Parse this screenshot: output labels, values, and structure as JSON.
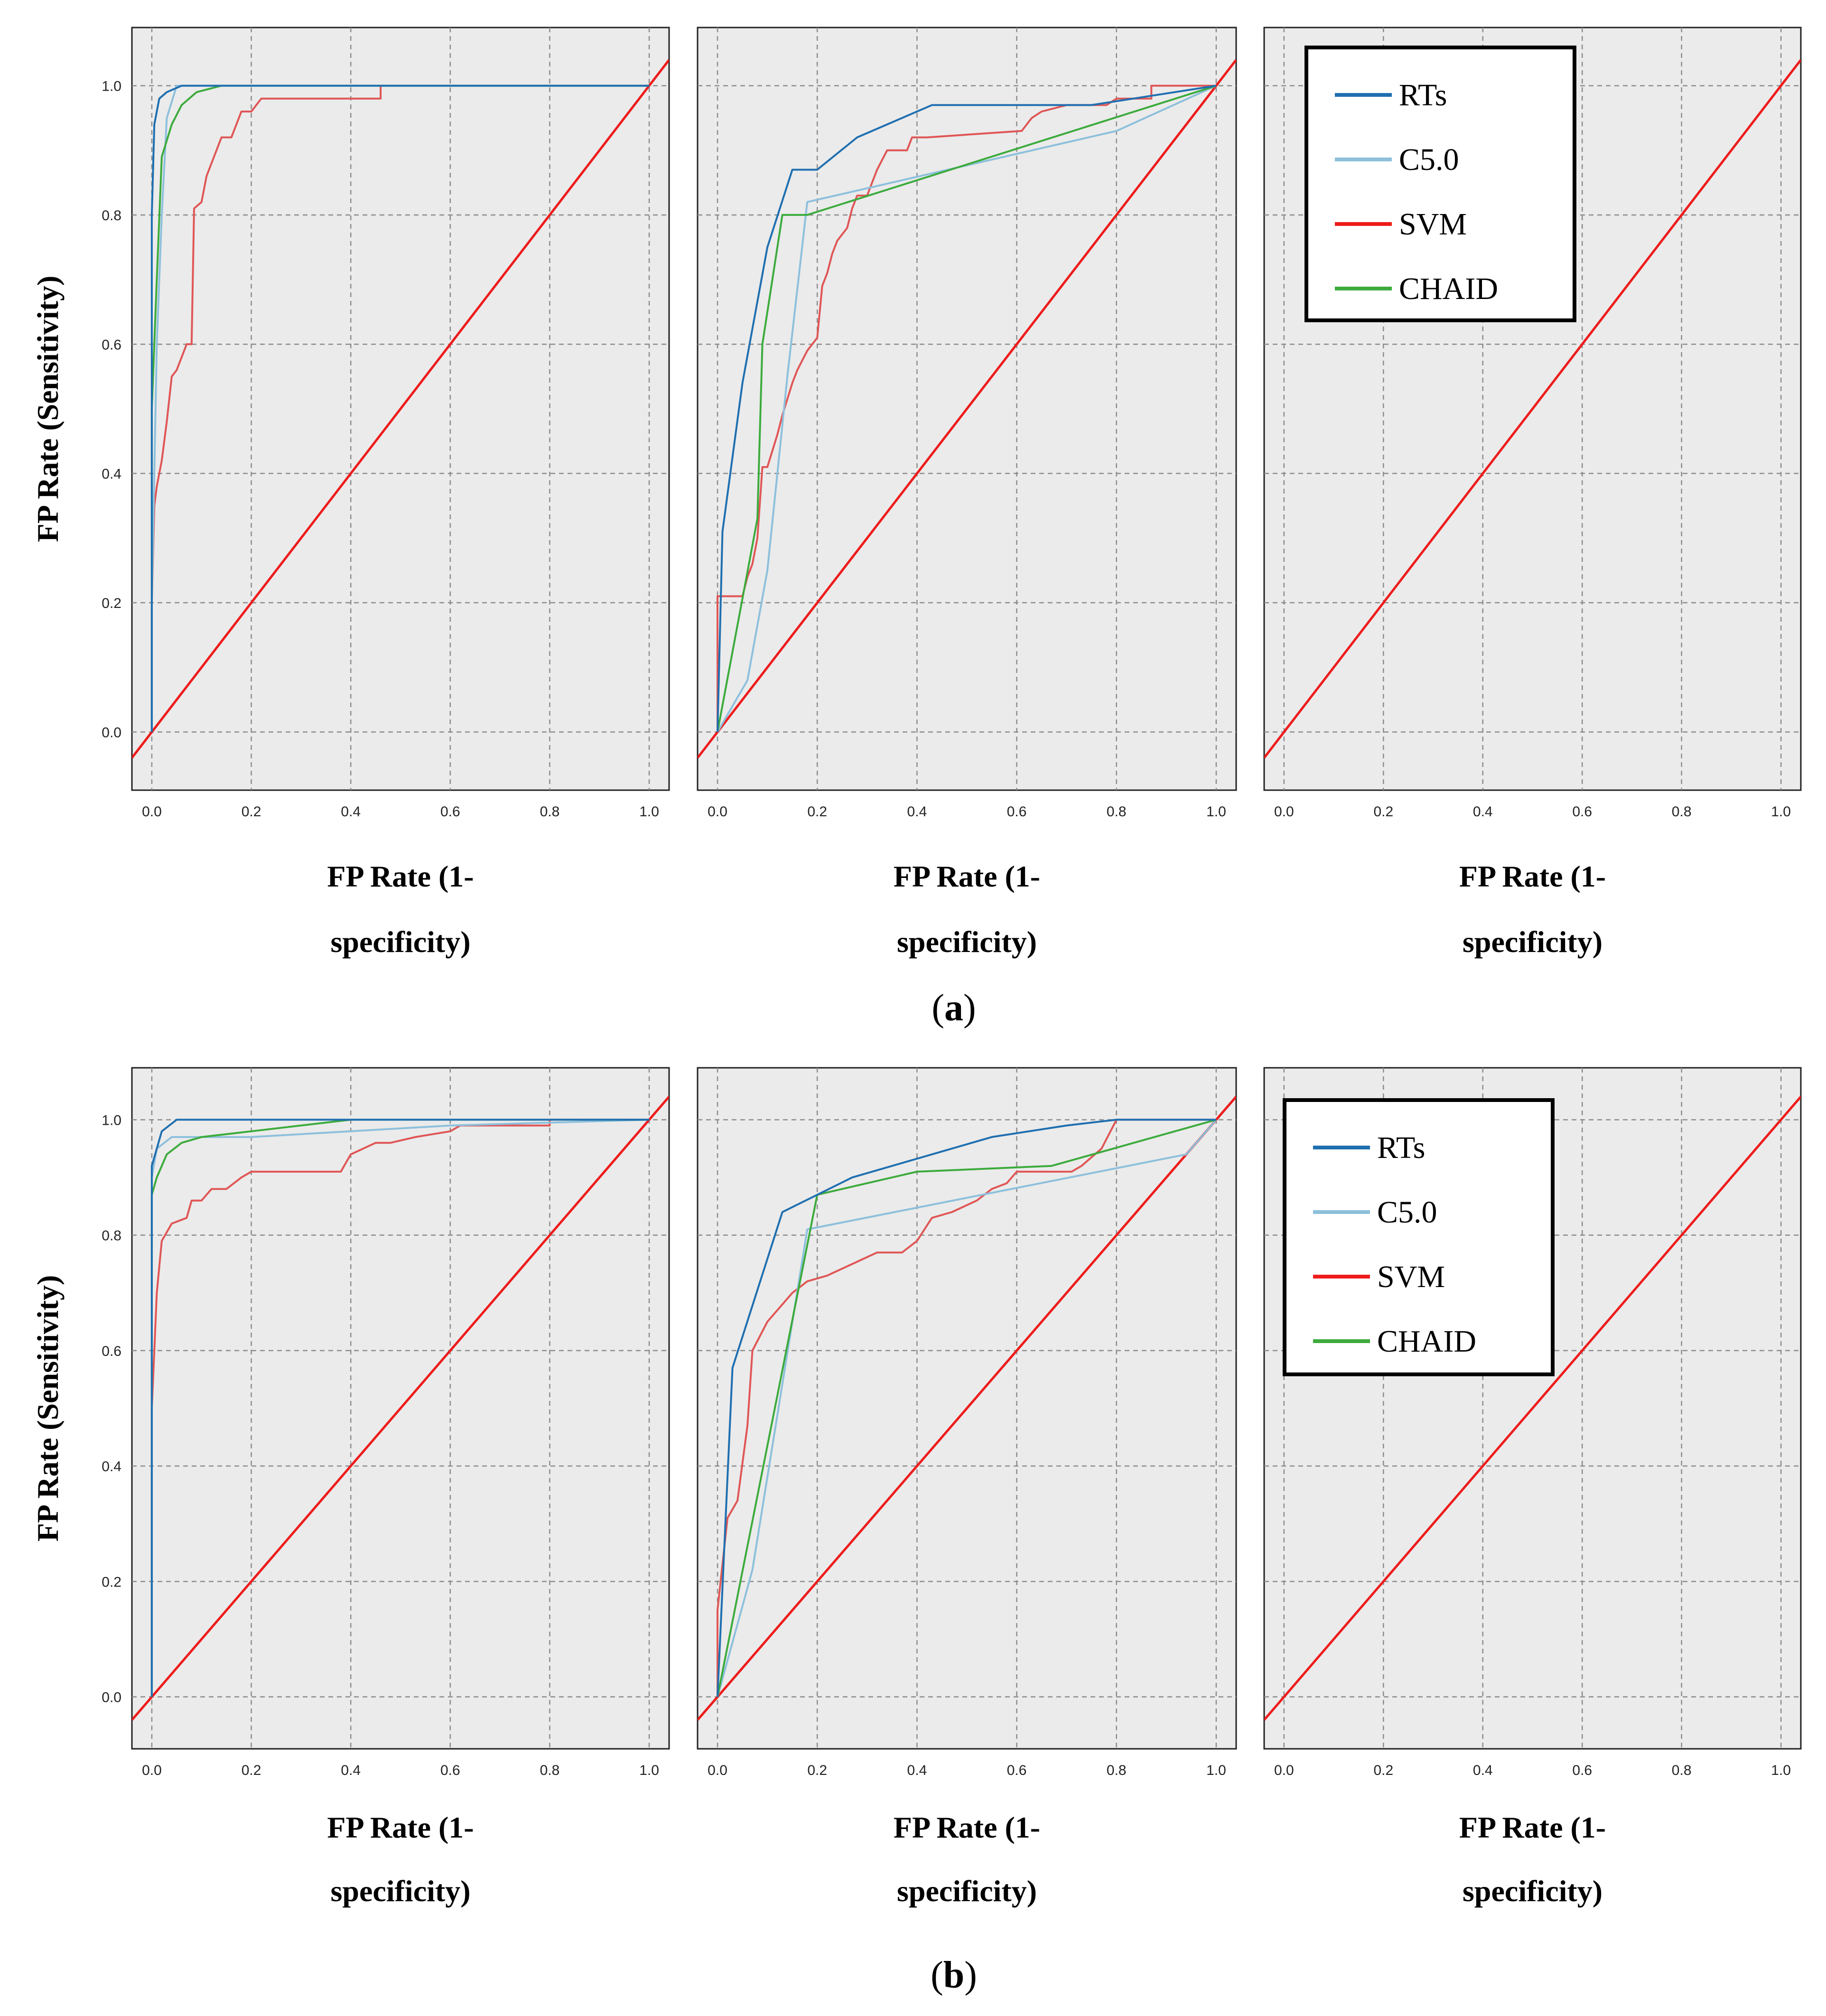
{
  "colors": {
    "RTs": "#1f6fb0",
    "C5.0": "#8dc0dc",
    "SVM": "#e05656",
    "CHAID": "#3cab3c",
    "reference": "#ee1c1c",
    "plot_bg": "#ebebeb",
    "grid": "#8c8c8c"
  },
  "legend": [
    {
      "name": "RTs",
      "color": "#1f6fb0"
    },
    {
      "name": "C5.0",
      "color": "#8dc0dc"
    },
    {
      "name": "SVM",
      "color": "#ee1c1c"
    },
    {
      "name": "CHAID",
      "color": "#3cab3c"
    }
  ],
  "panel_labels": [
    "a",
    "b"
  ],
  "chart_data": [
    {
      "group": "a",
      "panel": 1,
      "type": "line",
      "xlabel_line1": "FP Rate (1-",
      "xlabel_line2": "specificity)",
      "ylabel": "FP Rate (Sensitivity)",
      "xlim": [
        -0.04,
        1.04
      ],
      "ylim": [
        -0.09,
        1.09
      ],
      "xticks": [
        "0.0",
        "0.2",
        "0.4",
        "0.6",
        "0.8",
        "1.0"
      ],
      "yticks": [
        "0.0",
        "0.2",
        "0.4",
        "0.6",
        "0.8",
        "1.0"
      ],
      "grid": true,
      "show_legend": false,
      "series": [
        {
          "name": "SVM",
          "points": [
            [
              0,
              0
            ],
            [
              0,
              0.2
            ],
            [
              0.005,
              0.35
            ],
            [
              0.01,
              0.38
            ],
            [
              0.02,
              0.42
            ],
            [
              0.03,
              0.48
            ],
            [
              0.04,
              0.55
            ],
            [
              0.05,
              0.56
            ],
            [
              0.06,
              0.58
            ],
            [
              0.07,
              0.6
            ],
            [
              0.08,
              0.6
            ],
            [
              0.085,
              0.81
            ],
            [
              0.1,
              0.82
            ],
            [
              0.11,
              0.86
            ],
            [
              0.12,
              0.88
            ],
            [
              0.13,
              0.9
            ],
            [
              0.14,
              0.92
            ],
            [
              0.16,
              0.92
            ],
            [
              0.17,
              0.94
            ],
            [
              0.18,
              0.96
            ],
            [
              0.2,
              0.96
            ],
            [
              0.22,
              0.98
            ],
            [
              0.3,
              0.98
            ],
            [
              0.46,
              0.98
            ],
            [
              0.46,
              1.0
            ],
            [
              1.0,
              1.0
            ]
          ]
        },
        {
          "name": "C5.0",
          "points": [
            [
              0,
              0
            ],
            [
              0,
              0.2
            ],
            [
              0.01,
              0.6
            ],
            [
              0.02,
              0.8
            ],
            [
              0.03,
              0.95
            ],
            [
              0.05,
              1.0
            ],
            [
              1.0,
              1.0
            ]
          ]
        },
        {
          "name": "CHAID",
          "points": [
            [
              0,
              0
            ],
            [
              0,
              0.5
            ],
            [
              0.01,
              0.7
            ],
            [
              0.02,
              0.89
            ],
            [
              0.04,
              0.94
            ],
            [
              0.06,
              0.97
            ],
            [
              0.09,
              0.99
            ],
            [
              0.14,
              1.0
            ],
            [
              1.0,
              1.0
            ]
          ]
        },
        {
          "name": "RTs",
          "points": [
            [
              0,
              0
            ],
            [
              0,
              0.8
            ],
            [
              0.005,
              0.94
            ],
            [
              0.01,
              0.96
            ],
            [
              0.015,
              0.98
            ],
            [
              0.03,
              0.99
            ],
            [
              0.06,
              1.0
            ],
            [
              1.0,
              1.0
            ]
          ]
        }
      ],
      "reference_line": [
        [
          -0.04,
          -0.04
        ],
        [
          1.04,
          1.04
        ]
      ]
    },
    {
      "group": "a",
      "panel": 2,
      "type": "line",
      "xlabel_line1": "FP Rate (1-",
      "xlabel_line2": "specificity)",
      "ylabel": "",
      "xlim": [
        -0.04,
        1.04
      ],
      "ylim": [
        -0.09,
        1.09
      ],
      "xticks": [
        "0.0",
        "0.2",
        "0.4",
        "0.6",
        "0.8",
        "1.0"
      ],
      "yticks": [],
      "grid": true,
      "show_legend": false,
      "series": [
        {
          "name": "SVM",
          "points": [
            [
              0,
              0
            ],
            [
              0,
              0.21
            ],
            [
              0.05,
              0.21
            ],
            [
              0.06,
              0.24
            ],
            [
              0.07,
              0.26
            ],
            [
              0.08,
              0.3
            ],
            [
              0.09,
              0.41
            ],
            [
              0.1,
              0.41
            ],
            [
              0.12,
              0.46
            ],
            [
              0.13,
              0.49
            ],
            [
              0.15,
              0.54
            ],
            [
              0.16,
              0.56
            ],
            [
              0.18,
              0.59
            ],
            [
              0.2,
              0.61
            ],
            [
              0.21,
              0.69
            ],
            [
              0.22,
              0.71
            ],
            [
              0.23,
              0.74
            ],
            [
              0.24,
              0.76
            ],
            [
              0.26,
              0.78
            ],
            [
              0.27,
              0.81
            ],
            [
              0.28,
              0.83
            ],
            [
              0.3,
              0.83
            ],
            [
              0.31,
              0.85
            ],
            [
              0.32,
              0.87
            ],
            [
              0.34,
              0.9
            ],
            [
              0.38,
              0.9
            ],
            [
              0.39,
              0.92
            ],
            [
              0.42,
              0.92
            ],
            [
              0.61,
              0.93
            ],
            [
              0.63,
              0.95
            ],
            [
              0.65,
              0.96
            ],
            [
              0.7,
              0.97
            ],
            [
              0.78,
              0.97
            ],
            [
              0.8,
              0.98
            ],
            [
              0.87,
              0.98
            ],
            [
              0.87,
              1.0
            ],
            [
              1.0,
              1.0
            ]
          ]
        },
        {
          "name": "C5.0",
          "points": [
            [
              0,
              0
            ],
            [
              0.06,
              0.08
            ],
            [
              0.1,
              0.25
            ],
            [
              0.14,
              0.55
            ],
            [
              0.18,
              0.82
            ],
            [
              0.8,
              0.93
            ],
            [
              1.0,
              1.0
            ]
          ]
        },
        {
          "name": "CHAID",
          "points": [
            [
              0,
              0
            ],
            [
              0.08,
              0.33
            ],
            [
              0.09,
              0.6
            ],
            [
              0.13,
              0.8
            ],
            [
              0.18,
              0.8
            ],
            [
              1.0,
              1.0
            ]
          ]
        },
        {
          "name": "RTs",
          "points": [
            [
              0,
              0
            ],
            [
              0.01,
              0.31
            ],
            [
              0.05,
              0.54
            ],
            [
              0.1,
              0.75
            ],
            [
              0.15,
              0.87
            ],
            [
              0.2,
              0.87
            ],
            [
              0.28,
              0.92
            ],
            [
              0.43,
              0.97
            ],
            [
              0.75,
              0.97
            ],
            [
              1.0,
              1.0
            ]
          ]
        }
      ],
      "reference_line": [
        [
          -0.04,
          -0.04
        ],
        [
          1.04,
          1.04
        ]
      ]
    },
    {
      "group": "a",
      "panel": 3,
      "type": "line",
      "xlabel_line1": "FP Rate (1-",
      "xlabel_line2": "specificity)",
      "ylabel": "",
      "xlim": [
        -0.04,
        1.04
      ],
      "ylim": [
        -0.09,
        1.09
      ],
      "xticks": [
        "0.0",
        "0.2",
        "0.4",
        "0.6",
        "0.8",
        "1.0"
      ],
      "yticks": [],
      "grid": true,
      "show_legend": true,
      "series": [],
      "reference_line": [
        [
          -0.04,
          -0.04
        ],
        [
          1.04,
          1.04
        ]
      ]
    },
    {
      "group": "b",
      "panel": 1,
      "type": "line",
      "xlabel_line1": "FP Rate (1-",
      "xlabel_line2": "specificity)",
      "ylabel": "FP Rate (Sensitivity)",
      "xlim": [
        -0.04,
        1.04
      ],
      "ylim": [
        -0.09,
        1.09
      ],
      "xticks": [
        "0.0",
        "0.2",
        "0.4",
        "0.6",
        "0.8",
        "1.0"
      ],
      "yticks": [
        "0.0",
        "0.2",
        "0.4",
        "0.6",
        "0.8",
        "1.0"
      ],
      "grid": true,
      "show_legend": false,
      "series": [
        {
          "name": "SVM",
          "points": [
            [
              0,
              0
            ],
            [
              0,
              0.5
            ],
            [
              0.005,
              0.6
            ],
            [
              0.01,
              0.7
            ],
            [
              0.02,
              0.79
            ],
            [
              0.04,
              0.82
            ],
            [
              0.07,
              0.83
            ],
            [
              0.08,
              0.86
            ],
            [
              0.1,
              0.86
            ],
            [
              0.12,
              0.88
            ],
            [
              0.15,
              0.88
            ],
            [
              0.18,
              0.9
            ],
            [
              0.2,
              0.91
            ],
            [
              0.3,
              0.91
            ],
            [
              0.38,
              0.91
            ],
            [
              0.4,
              0.94
            ],
            [
              0.45,
              0.96
            ],
            [
              0.48,
              0.96
            ],
            [
              0.53,
              0.97
            ],
            [
              0.6,
              0.98
            ],
            [
              0.62,
              0.99
            ],
            [
              0.8,
              0.99
            ],
            [
              0.8,
              1.0
            ],
            [
              1.0,
              1.0
            ]
          ]
        },
        {
          "name": "C5.0",
          "points": [
            [
              0,
              0
            ],
            [
              0,
              0.9
            ],
            [
              0.01,
              0.95
            ],
            [
              0.04,
              0.97
            ],
            [
              0.2,
              0.97
            ],
            [
              0.6,
              0.99
            ],
            [
              1.0,
              1.0
            ]
          ]
        },
        {
          "name": "CHAID",
          "points": [
            [
              0,
              0
            ],
            [
              0,
              0.87
            ],
            [
              0.01,
              0.9
            ],
            [
              0.03,
              0.94
            ],
            [
              0.06,
              0.96
            ],
            [
              0.1,
              0.97
            ],
            [
              0.2,
              0.98
            ],
            [
              0.4,
              1.0
            ],
            [
              1.0,
              1.0
            ]
          ]
        },
        {
          "name": "RTs",
          "points": [
            [
              0,
              0
            ],
            [
              0,
              0.92
            ],
            [
              0.01,
              0.95
            ],
            [
              0.02,
              0.98
            ],
            [
              0.05,
              1.0
            ],
            [
              1.0,
              1.0
            ]
          ]
        }
      ],
      "reference_line": [
        [
          -0.04,
          -0.04
        ],
        [
          1.04,
          1.04
        ]
      ]
    },
    {
      "group": "b",
      "panel": 2,
      "type": "line",
      "xlabel_line1": "FP Rate (1-",
      "xlabel_line2": "specificity)",
      "ylabel": "",
      "xlim": [
        -0.04,
        1.04
      ],
      "ylim": [
        -0.09,
        1.09
      ],
      "xticks": [
        "0.0",
        "0.2",
        "0.4",
        "0.6",
        "0.8",
        "1.0"
      ],
      "yticks": [],
      "grid": true,
      "show_legend": false,
      "series": [
        {
          "name": "SVM",
          "points": [
            [
              0,
              0
            ],
            [
              0,
              0.15
            ],
            [
              0.02,
              0.31
            ],
            [
              0.04,
              0.34
            ],
            [
              0.06,
              0.47
            ],
            [
              0.07,
              0.6
            ],
            [
              0.1,
              0.65
            ],
            [
              0.13,
              0.68
            ],
            [
              0.15,
              0.7
            ],
            [
              0.18,
              0.72
            ],
            [
              0.22,
              0.73
            ],
            [
              0.27,
              0.75
            ],
            [
              0.32,
              0.77
            ],
            [
              0.37,
              0.77
            ],
            [
              0.4,
              0.79
            ],
            [
              0.43,
              0.83
            ],
            [
              0.47,
              0.84
            ],
            [
              0.52,
              0.86
            ],
            [
              0.55,
              0.88
            ],
            [
              0.58,
              0.89
            ],
            [
              0.6,
              0.91
            ],
            [
              0.71,
              0.91
            ],
            [
              0.73,
              0.92
            ],
            [
              0.77,
              0.95
            ],
            [
              0.8,
              1.0
            ],
            [
              1.0,
              1.0
            ]
          ]
        },
        {
          "name": "C5.0",
          "points": [
            [
              0,
              0
            ],
            [
              0.07,
              0.22
            ],
            [
              0.18,
              0.81
            ],
            [
              0.94,
              0.94
            ],
            [
              1.0,
              1.0
            ]
          ]
        },
        {
          "name": "CHAID",
          "points": [
            [
              0,
              0
            ],
            [
              0.2,
              0.87
            ],
            [
              0.4,
              0.91
            ],
            [
              0.67,
              0.92
            ],
            [
              1.0,
              1.0
            ]
          ]
        },
        {
          "name": "RTs",
          "points": [
            [
              0,
              0
            ],
            [
              0.03,
              0.57
            ],
            [
              0.13,
              0.84
            ],
            [
              0.27,
              0.9
            ],
            [
              0.55,
              0.97
            ],
            [
              0.7,
              0.99
            ],
            [
              0.8,
              1.0
            ],
            [
              1.0,
              1.0
            ]
          ]
        }
      ],
      "reference_line": [
        [
          -0.04,
          -0.04
        ],
        [
          1.04,
          1.04
        ]
      ]
    },
    {
      "group": "b",
      "panel": 3,
      "type": "line",
      "xlabel_line1": "FP Rate (1-",
      "xlabel_line2": "specificity)",
      "ylabel": "",
      "xlim": [
        -0.04,
        1.04
      ],
      "ylim": [
        -0.09,
        1.09
      ],
      "xticks": [
        "0.0",
        "0.2",
        "0.4",
        "0.6",
        "0.8",
        "1.0"
      ],
      "yticks": [],
      "grid": true,
      "show_legend": true,
      "series": [],
      "reference_line": [
        [
          -0.04,
          -0.04
        ],
        [
          1.04,
          1.04
        ]
      ]
    }
  ]
}
